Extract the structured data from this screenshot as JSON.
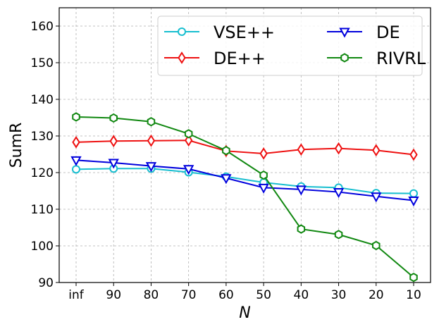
{
  "chart_data": {
    "type": "line",
    "title": "",
    "xlabel": "N",
    "ylabel": "SumR",
    "categories": [
      "inf",
      "90",
      "80",
      "70",
      "60",
      "50",
      "40",
      "30",
      "20",
      "10"
    ],
    "ylim": [
      90,
      165
    ],
    "yticks": [
      90,
      100,
      110,
      120,
      130,
      140,
      150,
      160
    ],
    "grid": true,
    "legend_position": "top-right",
    "series": [
      {
        "name": "VSE++",
        "color": "#17becf",
        "marker": "circle",
        "values": [
          120.9,
          121.1,
          121.1,
          120.1,
          118.9,
          117.3,
          116.2,
          115.9,
          114.4,
          114.3
        ]
      },
      {
        "name": "DE",
        "color": "#0000dd",
        "marker": "triangle-down",
        "values": [
          123.4,
          122.7,
          121.8,
          121.0,
          118.5,
          115.9,
          115.4,
          114.7,
          113.5,
          112.4
        ]
      },
      {
        "name": "DE++",
        "color": "#ee1111",
        "marker": "diamond",
        "values": [
          128.3,
          128.6,
          128.7,
          128.8,
          125.9,
          125.2,
          126.3,
          126.6,
          126.1,
          124.9
        ]
      },
      {
        "name": "RIVRL",
        "color": "#118811",
        "marker": "hexagon",
        "values": [
          135.2,
          134.9,
          133.9,
          130.6,
          126.0,
          119.3,
          104.6,
          103.1,
          100.1,
          91.4
        ]
      }
    ],
    "legend_order": [
      0,
      2,
      1,
      3
    ]
  }
}
